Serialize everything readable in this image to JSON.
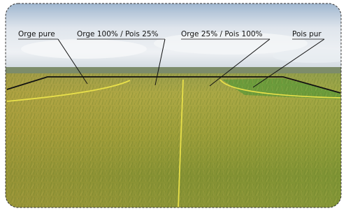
{
  "annotations": [
    "Orge pure",
    "Orge 100% / Pois 25%",
    "Orge 25% / Pois 100%",
    "Pois pur"
  ]
}
